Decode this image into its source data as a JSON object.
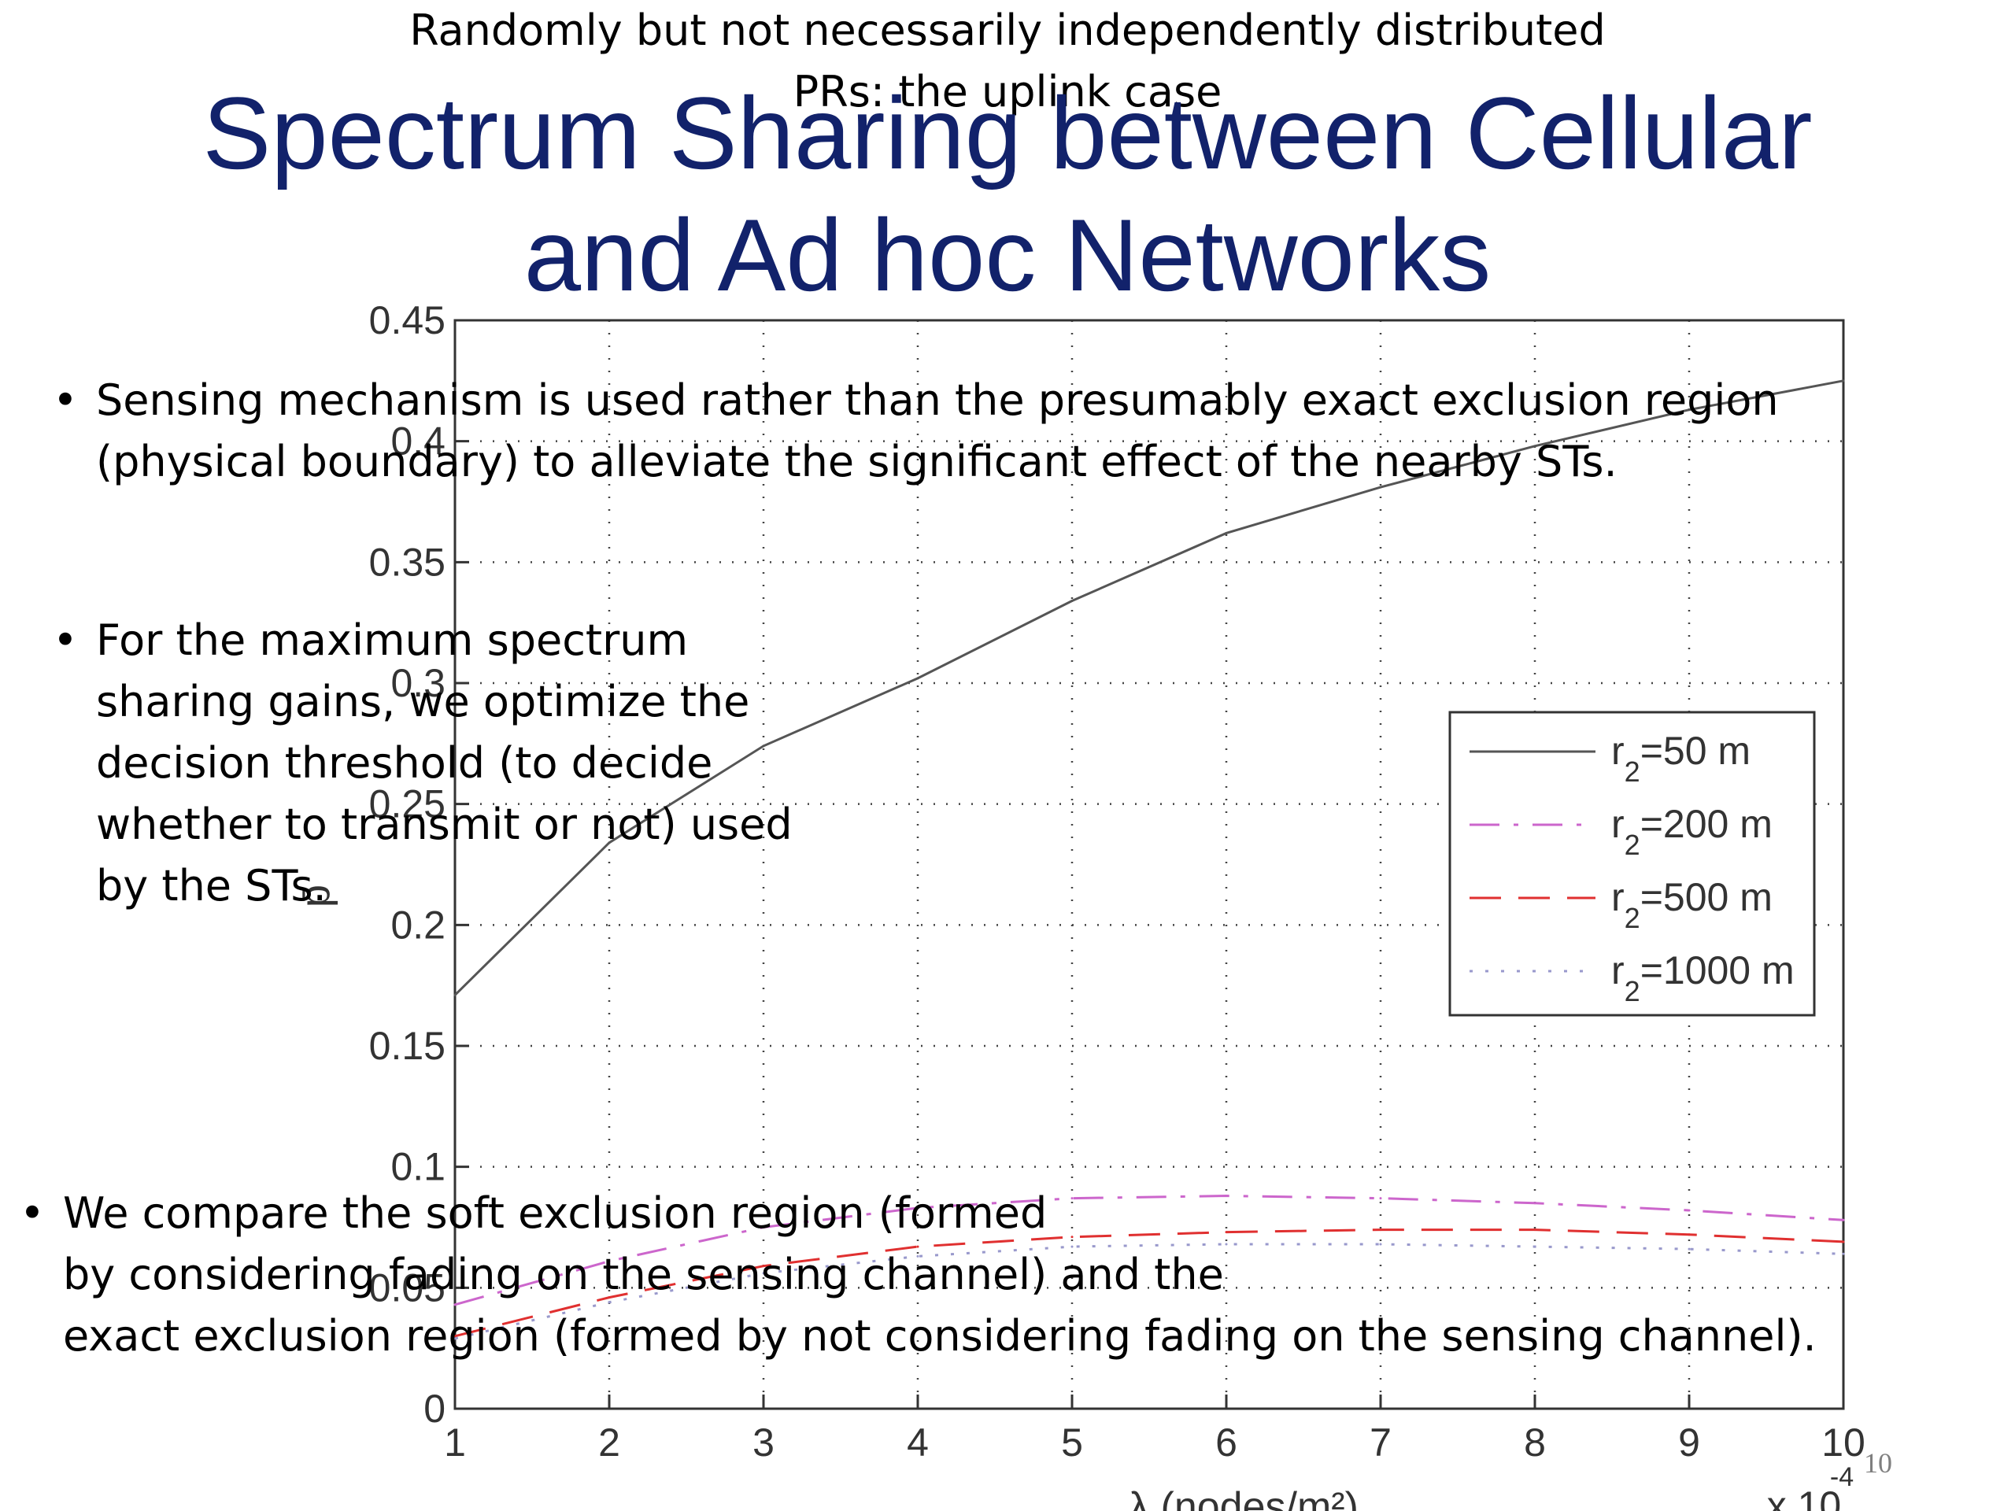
{
  "slide": {
    "title_line1": "Spectrum Sharing between Cellular",
    "title_line2": "and Ad hoc Networks",
    "page_number": "10",
    "bullets": [
      [
        "Sensing mechanism is used rather than the presumably exact exclusion region",
        "(physical boundary) to alleviate the significant effect of the nearby STs."
      ],
      [
        "For the maximum spectrum",
        "sharing gains, we optimize the",
        "decision threshold (to decide",
        "whether to transmit or not) used",
        "by the STs."
      ],
      [
        "We compare the soft exclusion region (formed",
        "by considering fading on the sensing channel) and the",
        "exact exclusion region (formed by not considering fading on the sensing channel)."
      ]
    ],
    "caption": [
      "Randomly but not necessarily independently distributed",
      "PRs: the uplink case"
    ]
  },
  "chart_data": {
    "type": "line",
    "x": [
      1,
      2,
      3,
      4,
      5,
      6,
      7,
      8,
      9,
      10
    ],
    "x_scale_label": "x 10",
    "x_scale_exponent": "-4",
    "xlabel": "λ (nodes/m²)",
    "ylabel": "p̄",
    "xlim": [
      1,
      10
    ],
    "ylim": [
      0,
      0.45
    ],
    "xticks": [
      "1",
      "2",
      "3",
      "4",
      "5",
      "6",
      "7",
      "8",
      "9",
      "10"
    ],
    "yticks": [
      "0",
      "0.05",
      "0.1",
      "0.15",
      "0.2",
      "0.25",
      "0.3",
      "0.35",
      "0.4",
      "0.45"
    ],
    "grid": true,
    "legend_position": "right",
    "series": [
      {
        "name": "r2=50 m",
        "label_prefix": "r",
        "label_sub": "2",
        "label_suffix": "=50 m",
        "color": "#555555",
        "dash": "solid",
        "values": [
          0.171,
          0.234,
          0.274,
          0.302,
          0.334,
          0.362,
          0.381,
          0.398,
          0.413,
          0.425
        ]
      },
      {
        "name": "r2=200 m",
        "label_prefix": "r",
        "label_sub": "2",
        "label_suffix": "=200 m",
        "color": "#cc66cc",
        "dash": "dashdot",
        "values": [
          0.043,
          0.061,
          0.075,
          0.083,
          0.087,
          0.088,
          0.087,
          0.085,
          0.082,
          0.078
        ]
      },
      {
        "name": "r2=500 m",
        "label_prefix": "r",
        "label_sub": "2",
        "label_suffix": "=500 m",
        "color": "#e03030",
        "dash": "dashed",
        "values": [
          0.03,
          0.046,
          0.059,
          0.067,
          0.071,
          0.073,
          0.074,
          0.074,
          0.072,
          0.069
        ]
      },
      {
        "name": "r2=1000 m",
        "label_prefix": "r",
        "label_sub": "2",
        "label_suffix": "=1000 m",
        "color": "#9999cc",
        "dash": "dotted",
        "values": [
          0.029,
          0.044,
          0.056,
          0.063,
          0.067,
          0.068,
          0.068,
          0.067,
          0.066,
          0.064
        ]
      }
    ]
  }
}
